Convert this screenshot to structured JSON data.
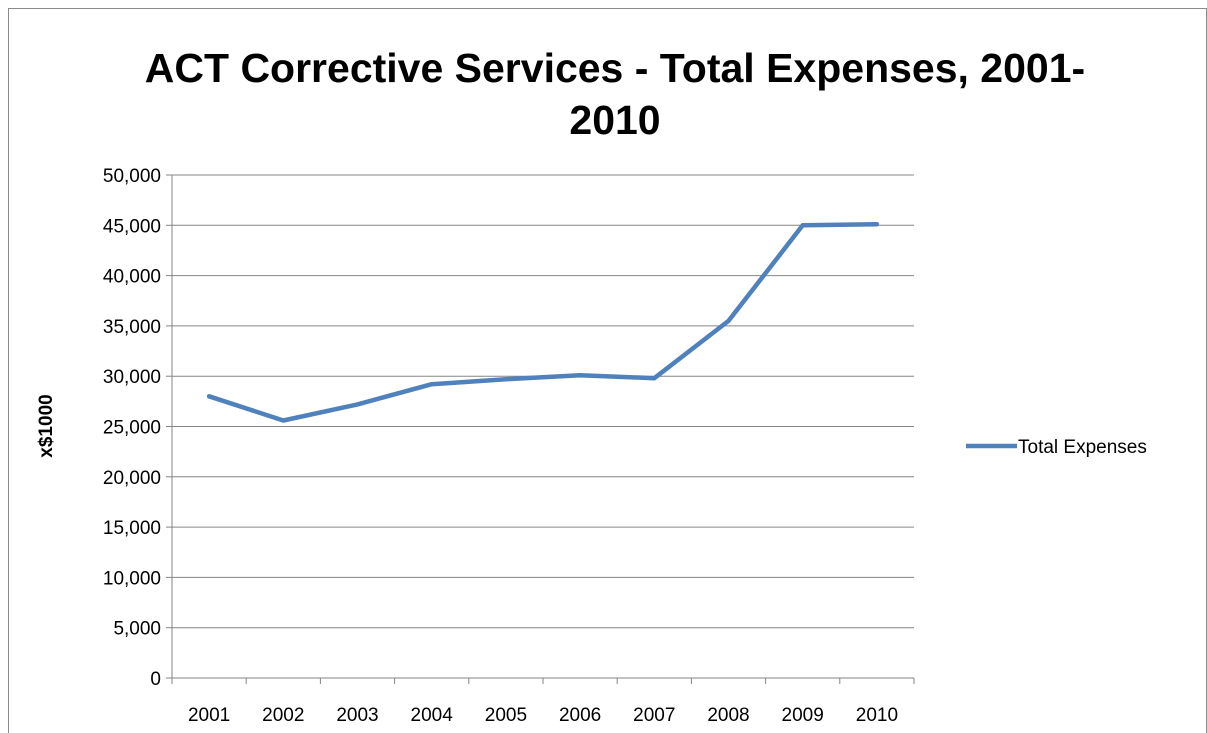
{
  "chart_data": {
    "type": "line",
    "title_line1": "ACT Corrective Services - Total Expenses, 2001-",
    "title_line2": "2010",
    "xlabel": "",
    "ylabel": "x$1000",
    "ylim": [
      0,
      50000
    ],
    "yticks": [
      "0",
      "5,000",
      "10,000",
      "15,000",
      "20,000",
      "25,000",
      "30,000",
      "35,000",
      "40,000",
      "45,000",
      "50,000"
    ],
    "categories": [
      "2001",
      "2002",
      "2003",
      "2004",
      "2005",
      "2006",
      "2007",
      "2008",
      "2009",
      "2010"
    ],
    "series": [
      {
        "name": "Total Expenses",
        "color": "#4f81bd",
        "values": [
          28000,
          25600,
          27200,
          29200,
          29700,
          30100,
          29800,
          35500,
          45000,
          45100
        ]
      }
    ],
    "grid": true,
    "legend": "right"
  }
}
